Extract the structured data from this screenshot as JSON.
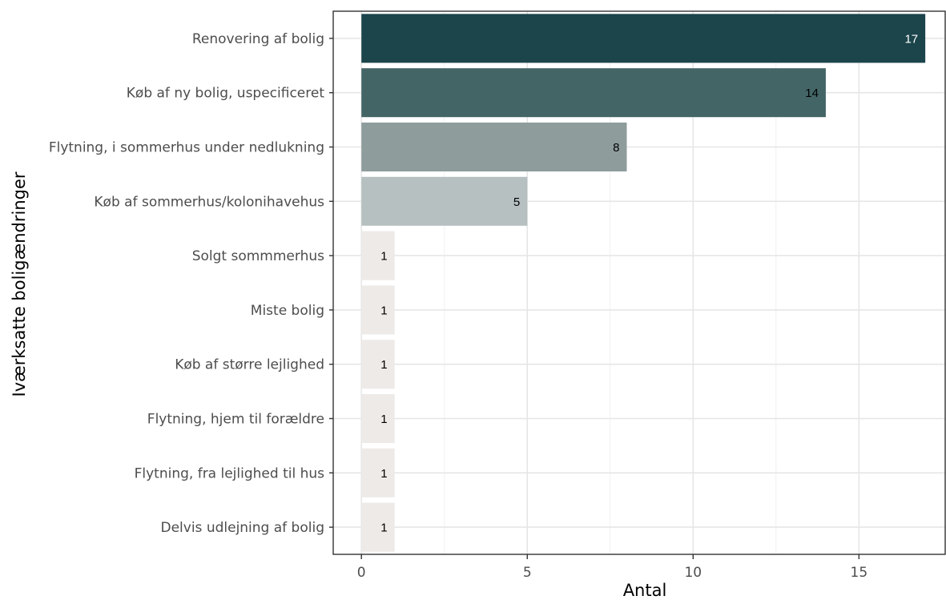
{
  "chart_data": {
    "type": "bar",
    "orientation": "horizontal",
    "title": "",
    "xlabel": "Antal",
    "ylabel": "Iværksatte boligændringer",
    "categories": [
      "Renovering af bolig",
      "Køb af ny bolig, uspecificeret",
      "Flytning, i sommerhus under nedlukning",
      "Køb af sommerhus/kolonihavehus",
      "Solgt sommmerhus",
      "Miste bolig",
      "Køb af større lejlighed",
      "Flytning, hjem til forældre",
      "Flytning, fra lejlighed til hus",
      "Delvis udlejning af bolig"
    ],
    "values": [
      17,
      14,
      8,
      5,
      1,
      1,
      1,
      1,
      1,
      1
    ],
    "bar_colors": [
      "#1b444b",
      "#436566",
      "#8e9c9c",
      "#b6c0c1",
      "#edeae8",
      "#edeae8",
      "#edeae8",
      "#edeae8",
      "#edeae8",
      "#edeae8"
    ],
    "label_colors": [
      "#ffffff",
      "#000000",
      "#000000",
      "#000000",
      "#000000",
      "#000000",
      "#000000",
      "#000000",
      "#000000",
      "#000000"
    ],
    "xlim": [
      -0.85,
      17.6
    ],
    "xticks": [
      0,
      5,
      10,
      15
    ],
    "grid": true,
    "legend": "none"
  }
}
